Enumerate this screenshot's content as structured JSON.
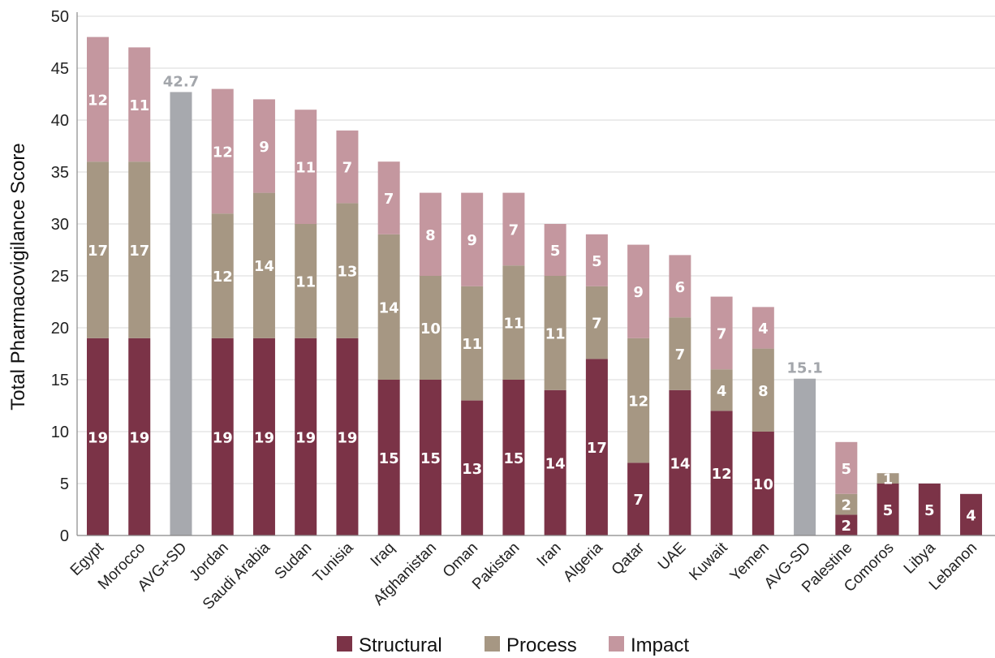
{
  "chart_data": {
    "type": "bar",
    "stacked": true,
    "title": "",
    "xlabel": "",
    "ylabel": "Total Pharmacovigilance Score",
    "ylim": [
      0,
      50
    ],
    "yticks": [
      0,
      5,
      10,
      15,
      20,
      25,
      30,
      35,
      40,
      45,
      50
    ],
    "grid": true,
    "legend_position": "bottom",
    "categories": [
      "Egypt",
      "Morocco",
      "AVG+SD",
      "Jordan",
      "Saudi Arabia",
      "Sudan",
      "Tunisia",
      "Iraq",
      "Afghanistan",
      "Oman",
      "Pakistan",
      "Iran",
      "Algeria",
      "Qatar",
      "UAE",
      "Kuwait",
      "Yemen",
      "AVG-SD",
      "Palestine",
      "Comoros",
      "Libya",
      "Lebanon"
    ],
    "series": [
      {
        "name": "Structural",
        "color": "#7b3347",
        "values": [
          19,
          19,
          null,
          19,
          19,
          19,
          19,
          15,
          15,
          13,
          15,
          14,
          17,
          7,
          14,
          12,
          10,
          null,
          2,
          5,
          5,
          4
        ],
        "labels": [
          "19",
          "19",
          "",
          "19",
          "19",
          "19",
          "19",
          "15",
          "15",
          "13",
          "15",
          "14",
          "17",
          "7",
          "14",
          "12",
          "10",
          "",
          "2",
          "5",
          "5",
          "4"
        ]
      },
      {
        "name": "Process",
        "color": "#a69783",
        "values": [
          17,
          17,
          null,
          12,
          14,
          11,
          13,
          14,
          10,
          11,
          11,
          11,
          7,
          12,
          7,
          4,
          8,
          null,
          2,
          1,
          0,
          0
        ],
        "labels": [
          "17",
          "17",
          "",
          "12",
          "14",
          "11",
          "13",
          "14",
          "10",
          "11",
          "11",
          "11",
          "7",
          "12",
          "7",
          "4",
          "8",
          "",
          "2",
          "1",
          "",
          ""
        ]
      },
      {
        "name": "Impact",
        "color": "#c4979f",
        "values": [
          12,
          11,
          null,
          12,
          9,
          11,
          7,
          7,
          8,
          9,
          7,
          5,
          5,
          9,
          6,
          7,
          4,
          null,
          5,
          0,
          0,
          0
        ],
        "labels": [
          "12",
          "11",
          "",
          "12",
          "9",
          "11",
          "7",
          "7",
          "8",
          "9",
          "7",
          "5",
          "5",
          "9",
          "6",
          "7",
          "4",
          "",
          "5",
          "",
          "",
          ""
        ]
      }
    ],
    "reference_bars": [
      {
        "category": "AVG+SD",
        "value": 42.7,
        "label": "42.7",
        "color": "#a7a9ae",
        "label_color": "#a3a6ab"
      },
      {
        "category": "AVG-SD",
        "value": 15.1,
        "label": "15.1",
        "color": "#a7a9ae",
        "label_color": "#a3a6ab"
      }
    ],
    "gridline_color": "#d9d9d9",
    "axis_color": "#888888"
  }
}
